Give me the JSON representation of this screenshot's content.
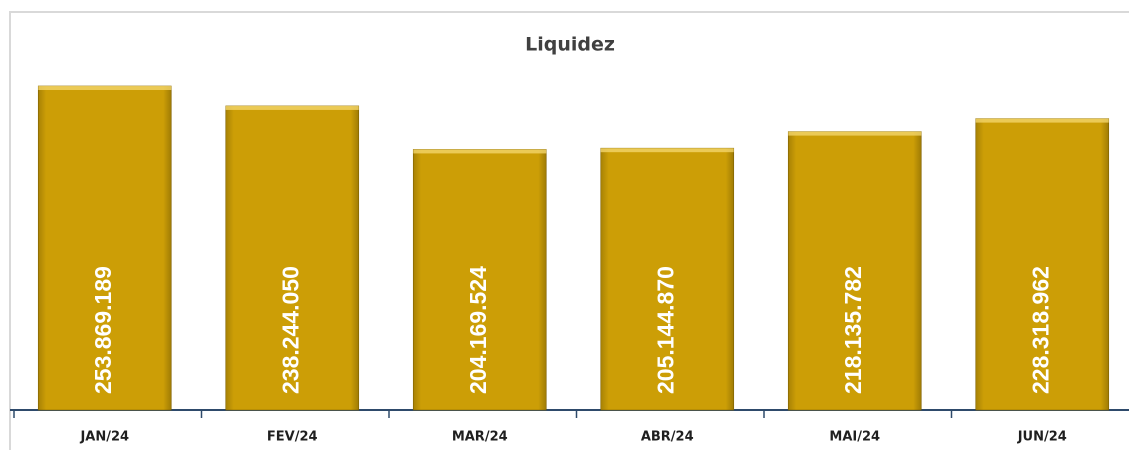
{
  "chart_data": {
    "type": "bar",
    "title": "Liquidez",
    "categories": [
      "JAN/24",
      "FEV/24",
      "MAR/24",
      "ABR/24",
      "MAI/24",
      "JUN/24"
    ],
    "values": [
      253869189,
      238244050,
      204169524,
      205144870,
      218135782,
      228318962
    ],
    "value_labels": [
      "253.869.189",
      "238.244.050",
      "204.169.524",
      "205.144.870",
      "218.135.782",
      "228.318.962"
    ],
    "color": "#cc9e06"
  }
}
